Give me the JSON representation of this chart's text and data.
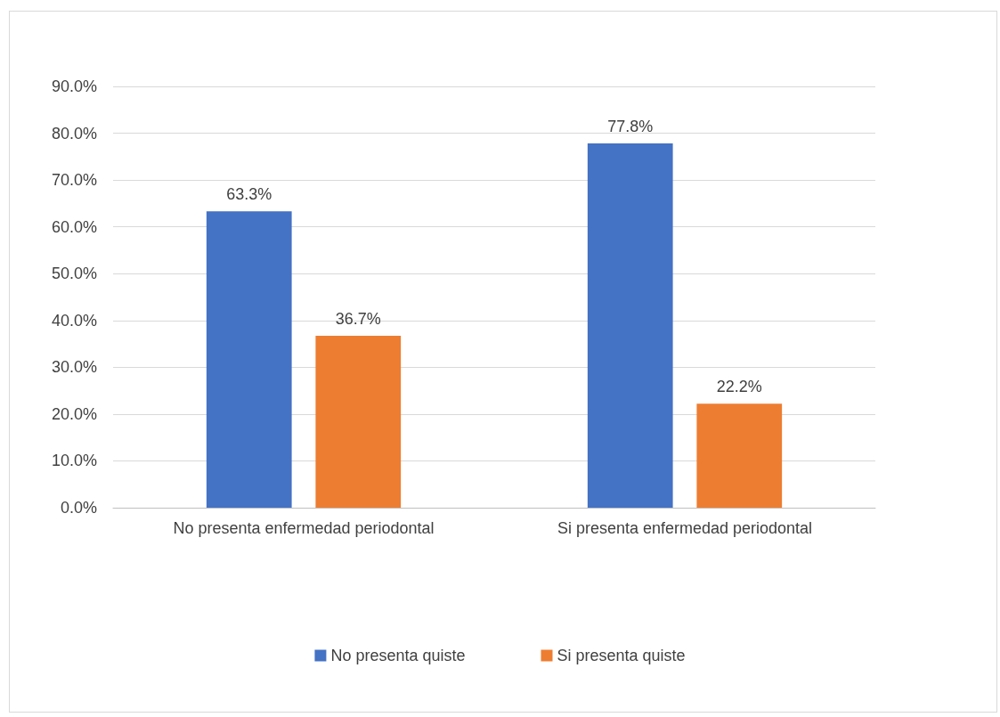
{
  "chart_data": {
    "type": "bar",
    "categories": [
      "No presenta enfermedad periodontal",
      "Si presenta enfermedad periodontal"
    ],
    "series": [
      {
        "name": "No presenta quiste",
        "color": "#4472c4",
        "values": [
          63.3,
          77.8
        ],
        "value_labels": [
          "63.3%",
          "77.8%"
        ]
      },
      {
        "name": "Si presenta quiste",
        "color": "#ed7d31",
        "values": [
          36.7,
          22.2
        ],
        "value_labels": [
          "36.7%",
          "22.2%"
        ]
      }
    ],
    "ylim": [
      0,
      90
    ],
    "yticks": [
      {
        "value": 0,
        "label": "0.0%"
      },
      {
        "value": 10,
        "label": "10.0%"
      },
      {
        "value": 20,
        "label": "20.0%"
      },
      {
        "value": 30,
        "label": "30.0%"
      },
      {
        "value": 40,
        "label": "40.0%"
      },
      {
        "value": 50,
        "label": "50.0%"
      },
      {
        "value": 60,
        "label": "60.0%"
      },
      {
        "value": 70,
        "label": "70.0%"
      },
      {
        "value": 80,
        "label": "80.0%"
      },
      {
        "value": 90,
        "label": "90.0%"
      }
    ],
    "grid": "y",
    "legend": "bottom"
  }
}
